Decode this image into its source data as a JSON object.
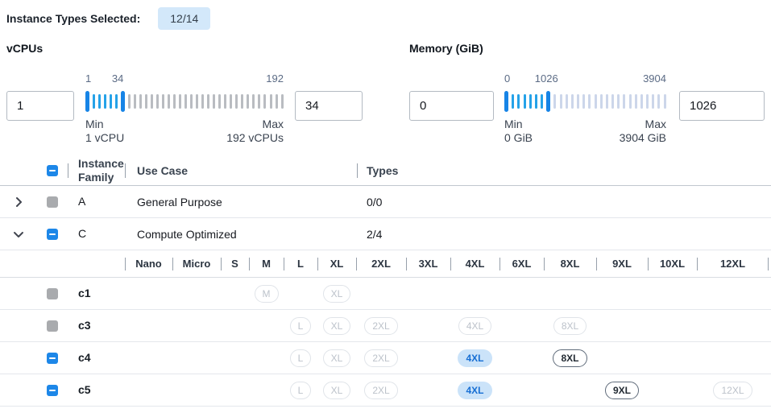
{
  "topbar": {
    "label": "Instance Types Selected:",
    "badge": "12/14"
  },
  "filters": {
    "vcpus": {
      "title": "vCPUs",
      "lower_input": "1",
      "upper_input": "34",
      "scale": {
        "start": "1",
        "mid": "34",
        "end": "192"
      },
      "mid_percent": 16.3,
      "min_label": "Min",
      "min_detail": "1 vCPU",
      "max_label": "Max",
      "max_detail": "192 vCPUs",
      "ticks": {
        "total": 35,
        "lower_index": 0,
        "upper_index": 6
      }
    },
    "memory": {
      "title": "Memory (GiB)",
      "lower_input": "0",
      "upper_input": "1026",
      "scale": {
        "start": "0",
        "mid": "1026",
        "end": "3904"
      },
      "mid_percent": 26,
      "min_label": "Min",
      "min_detail": "0 GiB",
      "max_label": "Max",
      "max_detail": "3904 GiB",
      "ticks": {
        "total": 28,
        "lower_index": 0,
        "upper_index": 7
      }
    }
  },
  "table": {
    "columns": {
      "family": "Instance Family",
      "use_case": "Use Case",
      "types": "Types"
    },
    "select_all_checkbox": "indeterminate",
    "size_columns": [
      "Nano",
      "Micro",
      "S",
      "M",
      "L",
      "XL",
      "2XL",
      "3XL",
      "4XL",
      "6XL",
      "8XL",
      "9XL",
      "10XL",
      "12XL"
    ],
    "family_rows": [
      {
        "family": "A",
        "use_case": "General Purpose",
        "types": "0/0",
        "expanded": false,
        "checkbox": "disabled"
      },
      {
        "family": "C",
        "use_case": "Compute Optimized",
        "types": "2/4",
        "expanded": true,
        "checkbox": "indeterminate"
      }
    ],
    "instance_rows": [
      {
        "name": "c1",
        "checkbox": "disabled",
        "sizes": [
          {
            "label": "M",
            "col": 3,
            "state": "filtered"
          },
          {
            "label": "XL",
            "col": 5,
            "state": "filtered"
          }
        ]
      },
      {
        "name": "c3",
        "checkbox": "disabled",
        "sizes": [
          {
            "label": "L",
            "col": 4,
            "state": "filtered"
          },
          {
            "label": "XL",
            "col": 5,
            "state": "filtered"
          },
          {
            "label": "2XL",
            "col": 6,
            "state": "filtered"
          },
          {
            "label": "4XL",
            "col": 8,
            "state": "filtered"
          },
          {
            "label": "8XL",
            "col": 10,
            "state": "filtered"
          }
        ]
      },
      {
        "name": "c4",
        "checkbox": "indeterminate",
        "sizes": [
          {
            "label": "L",
            "col": 4,
            "state": "filtered"
          },
          {
            "label": "XL",
            "col": 5,
            "state": "filtered"
          },
          {
            "label": "2XL",
            "col": 6,
            "state": "filtered"
          },
          {
            "label": "4XL",
            "col": 8,
            "state": "selected"
          },
          {
            "label": "8XL",
            "col": 10,
            "state": "available"
          }
        ]
      },
      {
        "name": "c5",
        "checkbox": "indeterminate",
        "sizes": [
          {
            "label": "L",
            "col": 4,
            "state": "filtered"
          },
          {
            "label": "XL",
            "col": 5,
            "state": "filtered"
          },
          {
            "label": "2XL",
            "col": 6,
            "state": "filtered"
          },
          {
            "label": "4XL",
            "col": 8,
            "state": "selected"
          },
          {
            "label": "9XL",
            "col": 11,
            "state": "available"
          },
          {
            "label": "12XL",
            "col": 13,
            "state": "filtered"
          }
        ]
      }
    ]
  },
  "colors": {
    "accent_blue": "#1d87e8",
    "badge_bg": "#d3e8fa",
    "selected_pill_bg": "#cbe3f9",
    "selected_pill_text": "#176fd4",
    "tick_range_blue": "#25a2e8",
    "tick_idle_gray": "#b9bcc1",
    "tick_idle_lightblue": "#ccd6ea",
    "disabled_checkbox_gray": "#a9abae"
  }
}
